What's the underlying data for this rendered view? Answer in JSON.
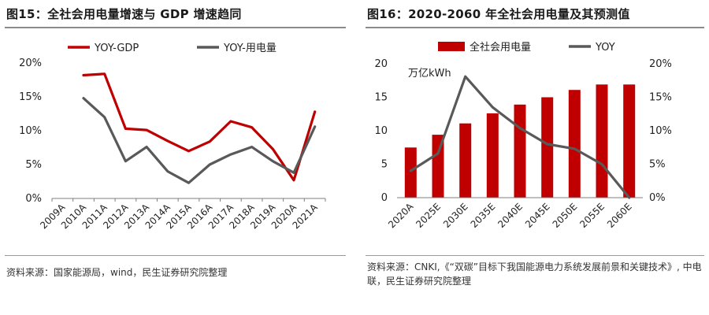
{
  "left": {
    "title": "图15：全社会用电量增速与 GDP 增速趋同",
    "source": "资料来源：国家能源局，wind，民生证券研究院整理",
    "chart_data": {
      "type": "line",
      "categories": [
        "2009A",
        "2010A",
        "2011A",
        "2012A",
        "2013A",
        "2014A",
        "2015A",
        "2016A",
        "2017A",
        "2018A",
        "2019A",
        "2020A",
        "2021A"
      ],
      "yticks": [
        "0%",
        "5%",
        "10%",
        "15%",
        "20%"
      ],
      "ylim": [
        0,
        20
      ],
      "legend_position": "top",
      "series": [
        {
          "name": "YOY-GDP",
          "color": "#c00000",
          "values": [
            null,
            18.2,
            18.4,
            10.3,
            10.1,
            8.5,
            7.0,
            8.4,
            11.4,
            10.5,
            7.3,
            2.7,
            12.8
          ]
        },
        {
          "name": "YOY-用电量",
          "color": "#595959",
          "values": [
            null,
            14.8,
            12.0,
            5.5,
            7.6,
            4.0,
            2.3,
            5.0,
            6.5,
            7.6,
            5.5,
            3.8,
            10.6
          ]
        }
      ]
    }
  },
  "right": {
    "title": "图16：2020-2060 年全社会用电量及其预测值",
    "source": "资料来源：CNKI,《“双碳”目标下我国能源电力系统发展前景和关键技术》, 中电联，民生证券研究院整理",
    "chart_data": {
      "type": "bar+line",
      "categories": [
        "2020A",
        "2025E",
        "2030E",
        "2035E",
        "2040E",
        "2045E",
        "2050E",
        "2055E",
        "2060E"
      ],
      "y_left_label": "万亿kWh",
      "y_left_ticks": [
        "0",
        "5",
        "10",
        "15",
        "20"
      ],
      "y_left_lim": [
        0,
        20
      ],
      "y_right_ticks": [
        "0%",
        "5%",
        "10%",
        "15%",
        "20%"
      ],
      "y_right_lim": [
        0,
        20
      ],
      "legend_position": "top",
      "bar_series": {
        "name": "全社会用电量",
        "color": "#c00000",
        "values": [
          7.5,
          9.4,
          11.1,
          12.6,
          13.9,
          15.0,
          16.1,
          16.9,
          16.9
        ]
      },
      "line_series": {
        "name": "YOY",
        "color": "#595959",
        "values": [
          4.0,
          6.6,
          18.1,
          13.5,
          10.4,
          8.0,
          7.3,
          5.0,
          0.0
        ]
      }
    }
  }
}
